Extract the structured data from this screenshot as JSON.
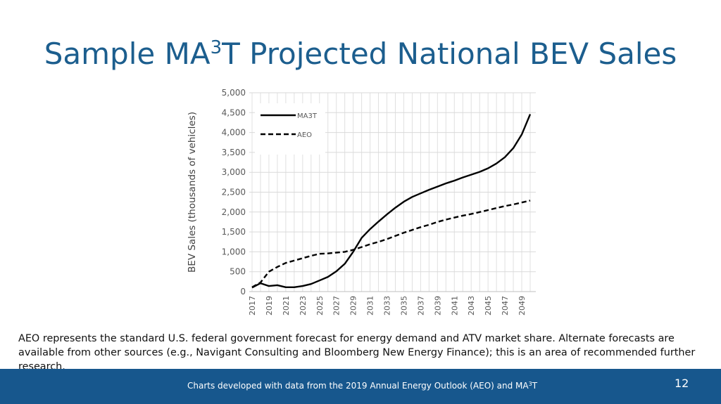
{
  "slide": {
    "title_pre": "Sample MA",
    "title_sup": "3",
    "title_post": "T Projected National BEV Sales",
    "note": "AEO represents the standard U.S. federal government forecast for energy demand and ATV market share. Alternate forecasts are available from other sources (e.g., Navigant Consulting and Bloomberg New Energy Finance); this is an area of recommended further research.",
    "footer_pre": "Charts developed with data from the 2019 Annual Energy Outlook (AEO) and MA",
    "footer_sup": "3",
    "footer_post": "T",
    "page_number": "12",
    "colors": {
      "title": "#1c5e8e",
      "footer_bg": "#17578d"
    }
  },
  "chart_data": {
    "type": "line",
    "title": "",
    "xlabel": "",
    "ylabel": "BEV Sales (thousands of vehicles)",
    "x": [
      2017,
      2018,
      2019,
      2020,
      2021,
      2022,
      2023,
      2024,
      2025,
      2026,
      2027,
      2028,
      2029,
      2030,
      2031,
      2032,
      2033,
      2034,
      2035,
      2036,
      2037,
      2038,
      2039,
      2040,
      2041,
      2042,
      2043,
      2044,
      2045,
      2046,
      2047,
      2048,
      2049,
      2050
    ],
    "xticks": [
      "2017",
      "2019",
      "2021",
      "2023",
      "2025",
      "2027",
      "2029",
      "2031",
      "2033",
      "2035",
      "2037",
      "2039",
      "2041",
      "2043",
      "2045",
      "2047",
      "2049"
    ],
    "yticks": [
      "0",
      "500",
      "1,000",
      "1,500",
      "2,000",
      "2,500",
      "3,000",
      "3,500",
      "4,000",
      "4,500",
      "5,000"
    ],
    "ylim": [
      0,
      5000
    ],
    "grid": true,
    "legend": "top-left",
    "series": [
      {
        "name": "MA3T",
        "style": "solid",
        "values": [
          100,
          210,
          140,
          160,
          110,
          110,
          140,
          190,
          280,
          370,
          510,
          700,
          1000,
          1350,
          1570,
          1760,
          1940,
          2110,
          2260,
          2380,
          2470,
          2560,
          2640,
          2720,
          2790,
          2870,
          2940,
          3010,
          3100,
          3220,
          3380,
          3610,
          3950,
          4460
        ]
      },
      {
        "name": "AEO",
        "style": "dashed",
        "values": [
          110,
          230,
          500,
          620,
          720,
          780,
          840,
          900,
          950,
          960,
          980,
          1000,
          1050,
          1120,
          1190,
          1250,
          1320,
          1400,
          1480,
          1550,
          1620,
          1680,
          1750,
          1810,
          1860,
          1910,
          1950,
          2000,
          2050,
          2100,
          2150,
          2190,
          2240,
          2290
        ]
      }
    ]
  }
}
